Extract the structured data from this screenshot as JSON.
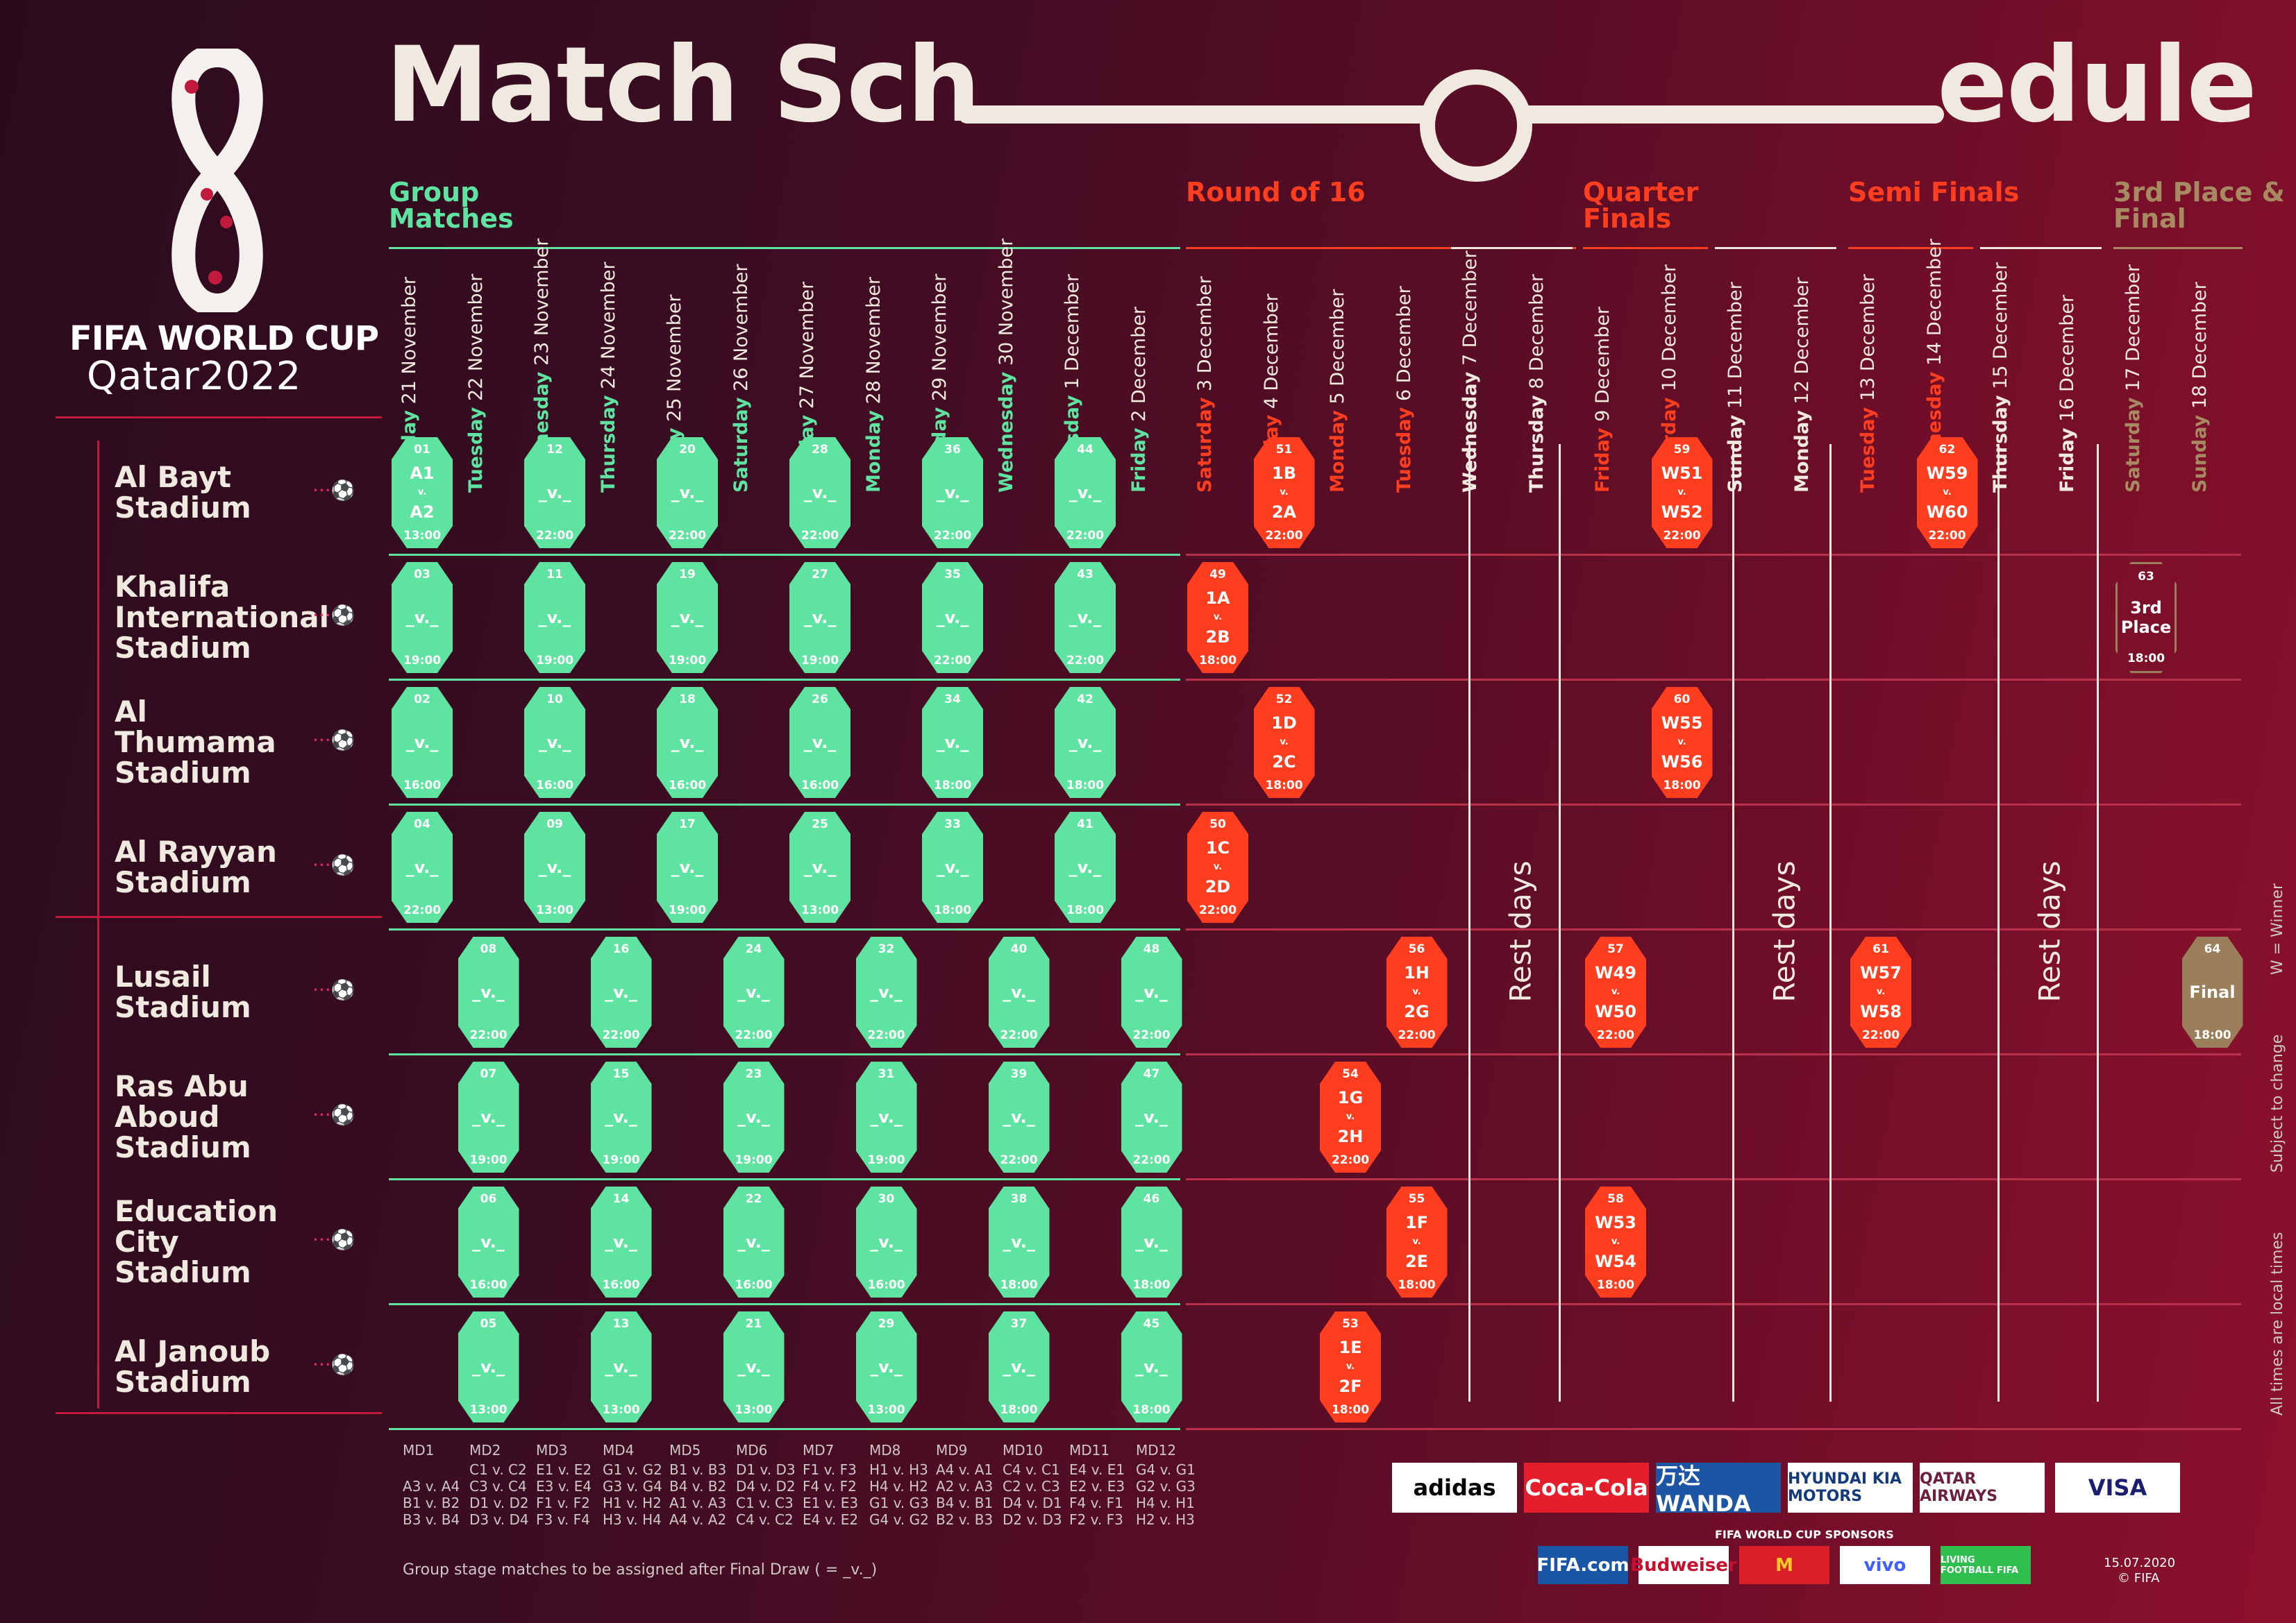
{
  "title": {
    "part1": "Match Sch",
    "part2": "edule"
  },
  "logo": {
    "line1": "FIFA WORLD CUP",
    "line2": "Qatar2022"
  },
  "phases": [
    {
      "label": "Group Matches",
      "color": "#5fe3a1"
    },
    {
      "label": "Round of 16",
      "color": "#ff3d1f"
    },
    {
      "label": "Quarter Finals",
      "color": "#ff3d1f"
    },
    {
      "label": "Semi Finals",
      "color": "#ff3d1f"
    },
    {
      "label": "3rd Place & Final",
      "color": "#a78a62"
    }
  ],
  "days": [
    {
      "wd": "Monday",
      "d": "21 November",
      "c": "#5fe3a1"
    },
    {
      "wd": "Tuesday",
      "d": "22 November",
      "c": "#5fe3a1"
    },
    {
      "wd": "Wednesday",
      "d": "23 November",
      "c": "#5fe3a1"
    },
    {
      "wd": "Thursday",
      "d": "24 November",
      "c": "#5fe3a1"
    },
    {
      "wd": "Friday",
      "d": "25 November",
      "c": "#5fe3a1"
    },
    {
      "wd": "Saturday",
      "d": "26 November",
      "c": "#5fe3a1"
    },
    {
      "wd": "Sunday",
      "d": "27 November",
      "c": "#5fe3a1"
    },
    {
      "wd": "Monday",
      "d": "28 November",
      "c": "#5fe3a1"
    },
    {
      "wd": "Tuesday",
      "d": "29 November",
      "c": "#5fe3a1"
    },
    {
      "wd": "Wednesday",
      "d": "30 November",
      "c": "#5fe3a1"
    },
    {
      "wd": "Thursday",
      "d": "1 December",
      "c": "#5fe3a1"
    },
    {
      "wd": "Friday",
      "d": "2 December",
      "c": "#5fe3a1"
    },
    {
      "wd": "Saturday",
      "d": "3 December",
      "c": "#ff3d1f"
    },
    {
      "wd": "Sunday",
      "d": "4 December",
      "c": "#ff3d1f"
    },
    {
      "wd": "Monday",
      "d": "5 December",
      "c": "#ff3d1f"
    },
    {
      "wd": "Tuesday",
      "d": "6 December",
      "c": "#ff3d1f"
    },
    {
      "wd": "Wednesday",
      "d": "7 December",
      "c": "#efe9df"
    },
    {
      "wd": "Thursday",
      "d": "8 December",
      "c": "#efe9df"
    },
    {
      "wd": "Friday",
      "d": "9 December",
      "c": "#ff3d1f"
    },
    {
      "wd": "Saturday",
      "d": "10 December",
      "c": "#ff3d1f"
    },
    {
      "wd": "Sunday",
      "d": "11 December",
      "c": "#efe9df"
    },
    {
      "wd": "Monday",
      "d": "12 December",
      "c": "#efe9df"
    },
    {
      "wd": "Tuesday",
      "d": "13 December",
      "c": "#ff3d1f"
    },
    {
      "wd": "Wednesday",
      "d": "14 December",
      "c": "#ff3d1f"
    },
    {
      "wd": "Thursday",
      "d": "15 December",
      "c": "#efe9df"
    },
    {
      "wd": "Friday",
      "d": "16 December",
      "c": "#efe9df"
    },
    {
      "wd": "Saturday",
      "d": "17 December",
      "c": "#a78a62"
    },
    {
      "wd": "Sunday",
      "d": "18 December",
      "c": "#a78a62"
    }
  ],
  "stadiums": [
    {
      "name": "Al Bayt Stadium",
      "lines": [
        "Al Bayt",
        "Stadium"
      ]
    },
    {
      "name": "Khalifa International Stadium",
      "lines": [
        "Khalifa",
        "International",
        "Stadium"
      ]
    },
    {
      "name": "Al Thumama Stadium",
      "lines": [
        "Al",
        "Thumama",
        "Stadium"
      ]
    },
    {
      "name": "Al Rayyan Stadium",
      "lines": [
        "Al Rayyan",
        "Stadium"
      ]
    },
    {
      "name": "Lusail Stadium",
      "lines": [
        "Lusail",
        "Stadium"
      ]
    },
    {
      "name": "Ras Abu Aboud Stadium",
      "lines": [
        "Ras Abu",
        "Aboud",
        "Stadium"
      ]
    },
    {
      "name": "Education City Stadium",
      "lines": [
        "Education",
        "City",
        "Stadium"
      ]
    },
    {
      "name": "Al Janoub Stadium",
      "lines": [
        "Al Janoub",
        "Stadium"
      ]
    }
  ],
  "matches": [
    {
      "n": "01",
      "row": 0,
      "day": 0,
      "t1": "A1",
      "t2": "A2",
      "time": "13:00",
      "k": "g"
    },
    {
      "n": "12",
      "row": 0,
      "day": 2,
      "t1": "_",
      "t2": "_",
      "time": "22:00",
      "k": "g"
    },
    {
      "n": "20",
      "row": 0,
      "day": 4,
      "t1": "_",
      "t2": "_",
      "time": "22:00",
      "k": "g"
    },
    {
      "n": "28",
      "row": 0,
      "day": 6,
      "t1": "_",
      "t2": "_",
      "time": "22:00",
      "k": "g"
    },
    {
      "n": "36",
      "row": 0,
      "day": 8,
      "t1": "_",
      "t2": "_",
      "time": "22:00",
      "k": "g"
    },
    {
      "n": "44",
      "row": 0,
      "day": 10,
      "t1": "_",
      "t2": "_",
      "time": "22:00",
      "k": "g"
    },
    {
      "n": "51",
      "row": 0,
      "day": 13,
      "t1": "1B",
      "t2": "2A",
      "time": "22:00",
      "k": "r"
    },
    {
      "n": "59",
      "row": 0,
      "day": 19,
      "t1": "W51",
      "t2": "W52",
      "time": "22:00",
      "k": "r"
    },
    {
      "n": "62",
      "row": 0,
      "day": 23,
      "t1": "W59",
      "t2": "W60",
      "time": "22:00",
      "k": "r"
    },
    {
      "n": "03",
      "row": 1,
      "day": 0,
      "t1": "_",
      "t2": "_",
      "time": "19:00",
      "k": "g"
    },
    {
      "n": "11",
      "row": 1,
      "day": 2,
      "t1": "_",
      "t2": "_",
      "time": "19:00",
      "k": "g"
    },
    {
      "n": "19",
      "row": 1,
      "day": 4,
      "t1": "_",
      "t2": "_",
      "time": "19:00",
      "k": "g"
    },
    {
      "n": "27",
      "row": 1,
      "day": 6,
      "t1": "_",
      "t2": "_",
      "time": "19:00",
      "k": "g"
    },
    {
      "n": "35",
      "row": 1,
      "day": 8,
      "t1": "_",
      "t2": "_",
      "time": "22:00",
      "k": "g"
    },
    {
      "n": "43",
      "row": 1,
      "day": 10,
      "t1": "_",
      "t2": "_",
      "time": "22:00",
      "k": "g"
    },
    {
      "n": "49",
      "row": 1,
      "day": 12,
      "t1": "1A",
      "t2": "2B",
      "time": "18:00",
      "k": "r"
    },
    {
      "n": "63",
      "row": 1,
      "day": 26,
      "t1": "3rd",
      "t2": "Place",
      "time": "18:00",
      "k": "t3"
    },
    {
      "n": "02",
      "row": 2,
      "day": 0,
      "t1": "_",
      "t2": "_",
      "time": "16:00",
      "k": "g"
    },
    {
      "n": "10",
      "row": 2,
      "day": 2,
      "t1": "_",
      "t2": "_",
      "time": "16:00",
      "k": "g"
    },
    {
      "n": "18",
      "row": 2,
      "day": 4,
      "t1": "_",
      "t2": "_",
      "time": "16:00",
      "k": "g"
    },
    {
      "n": "26",
      "row": 2,
      "day": 6,
      "t1": "_",
      "t2": "_",
      "time": "16:00",
      "k": "g"
    },
    {
      "n": "34",
      "row": 2,
      "day": 8,
      "t1": "_",
      "t2": "_",
      "time": "18:00",
      "k": "g"
    },
    {
      "n": "42",
      "row": 2,
      "day": 10,
      "t1": "_",
      "t2": "_",
      "time": "18:00",
      "k": "g"
    },
    {
      "n": "52",
      "row": 2,
      "day": 13,
      "t1": "1D",
      "t2": "2C",
      "time": "18:00",
      "k": "r"
    },
    {
      "n": "60",
      "row": 2,
      "day": 19,
      "t1": "W55",
      "t2": "W56",
      "time": "18:00",
      "k": "r"
    },
    {
      "n": "04",
      "row": 3,
      "day": 0,
      "t1": "_",
      "t2": "_",
      "time": "22:00",
      "k": "g"
    },
    {
      "n": "09",
      "row": 3,
      "day": 2,
      "t1": "_",
      "t2": "_",
      "time": "13:00",
      "k": "g"
    },
    {
      "n": "17",
      "row": 3,
      "day": 4,
      "t1": "_",
      "t2": "_",
      "time": "19:00",
      "k": "g"
    },
    {
      "n": "25",
      "row": 3,
      "day": 6,
      "t1": "_",
      "t2": "_",
      "time": "13:00",
      "k": "g"
    },
    {
      "n": "33",
      "row": 3,
      "day": 8,
      "t1": "_",
      "t2": "_",
      "time": "18:00",
      "k": "g"
    },
    {
      "n": "41",
      "row": 3,
      "day": 10,
      "t1": "_",
      "t2": "_",
      "time": "18:00",
      "k": "g"
    },
    {
      "n": "50",
      "row": 3,
      "day": 12,
      "t1": "1C",
      "t2": "2D",
      "time": "22:00",
      "k": "r"
    },
    {
      "n": "08",
      "row": 4,
      "day": 1,
      "t1": "_",
      "t2": "_",
      "time": "22:00",
      "k": "g"
    },
    {
      "n": "16",
      "row": 4,
      "day": 3,
      "t1": "_",
      "t2": "_",
      "time": "22:00",
      "k": "g"
    },
    {
      "n": "24",
      "row": 4,
      "day": 5,
      "t1": "_",
      "t2": "_",
      "time": "22:00",
      "k": "g"
    },
    {
      "n": "32",
      "row": 4,
      "day": 7,
      "t1": "_",
      "t2": "_",
      "time": "22:00",
      "k": "g"
    },
    {
      "n": "40",
      "row": 4,
      "day": 9,
      "t1": "_",
      "t2": "_",
      "time": "22:00",
      "k": "g"
    },
    {
      "n": "48",
      "row": 4,
      "day": 11,
      "t1": "_",
      "t2": "_",
      "time": "22:00",
      "k": "g"
    },
    {
      "n": "56",
      "row": 4,
      "day": 15,
      "t1": "1H",
      "t2": "2G",
      "time": "22:00",
      "k": "r"
    },
    {
      "n": "57",
      "row": 4,
      "day": 18,
      "t1": "W49",
      "t2": "W50",
      "time": "22:00",
      "k": "r"
    },
    {
      "n": "61",
      "row": 4,
      "day": 22,
      "t1": "W57",
      "t2": "W58",
      "time": "22:00",
      "k": "r"
    },
    {
      "n": "64",
      "row": 4,
      "day": 27,
      "t1": "Final",
      "t2": "",
      "time": "18:00",
      "k": "f"
    },
    {
      "n": "07",
      "row": 5,
      "day": 1,
      "t1": "_",
      "t2": "_",
      "time": "19:00",
      "k": "g"
    },
    {
      "n": "15",
      "row": 5,
      "day": 3,
      "t1": "_",
      "t2": "_",
      "time": "19:00",
      "k": "g"
    },
    {
      "n": "23",
      "row": 5,
      "day": 5,
      "t1": "_",
      "t2": "_",
      "time": "19:00",
      "k": "g"
    },
    {
      "n": "31",
      "row": 5,
      "day": 7,
      "t1": "_",
      "t2": "_",
      "time": "19:00",
      "k": "g"
    },
    {
      "n": "39",
      "row": 5,
      "day": 9,
      "t1": "_",
      "t2": "_",
      "time": "22:00",
      "k": "g"
    },
    {
      "n": "47",
      "row": 5,
      "day": 11,
      "t1": "_",
      "t2": "_",
      "time": "22:00",
      "k": "g"
    },
    {
      "n": "54",
      "row": 5,
      "day": 14,
      "t1": "1G",
      "t2": "2H",
      "time": "22:00",
      "k": "r"
    },
    {
      "n": "06",
      "row": 6,
      "day": 1,
      "t1": "_",
      "t2": "_",
      "time": "16:00",
      "k": "g"
    },
    {
      "n": "14",
      "row": 6,
      "day": 3,
      "t1": "_",
      "t2": "_",
      "time": "16:00",
      "k": "g"
    },
    {
      "n": "22",
      "row": 6,
      "day": 5,
      "t1": "_",
      "t2": "_",
      "time": "16:00",
      "k": "g"
    },
    {
      "n": "30",
      "row": 6,
      "day": 7,
      "t1": "_",
      "t2": "_",
      "time": "16:00",
      "k": "g"
    },
    {
      "n": "38",
      "row": 6,
      "day": 9,
      "t1": "_",
      "t2": "_",
      "time": "18:00",
      "k": "g"
    },
    {
      "n": "46",
      "row": 6,
      "day": 11,
      "t1": "_",
      "t2": "_",
      "time": "18:00",
      "k": "g"
    },
    {
      "n": "55",
      "row": 6,
      "day": 15,
      "t1": "1F",
      "t2": "2E",
      "time": "18:00",
      "k": "r"
    },
    {
      "n": "58",
      "row": 6,
      "day": 18,
      "t1": "W53",
      "t2": "W54",
      "time": "18:00",
      "k": "r"
    },
    {
      "n": "05",
      "row": 7,
      "day": 1,
      "t1": "_",
      "t2": "_",
      "time": "13:00",
      "k": "g"
    },
    {
      "n": "13",
      "row": 7,
      "day": 3,
      "t1": "_",
      "t2": "_",
      "time": "13:00",
      "k": "g"
    },
    {
      "n": "21",
      "row": 7,
      "day": 5,
      "t1": "_",
      "t2": "_",
      "time": "13:00",
      "k": "g"
    },
    {
      "n": "29",
      "row": 7,
      "day": 7,
      "t1": "_",
      "t2": "_",
      "time": "13:00",
      "k": "g"
    },
    {
      "n": "37",
      "row": 7,
      "day": 9,
      "t1": "_",
      "t2": "_",
      "time": "18:00",
      "k": "g"
    },
    {
      "n": "45",
      "row": 7,
      "day": 11,
      "t1": "_",
      "t2": "_",
      "time": "18:00",
      "k": "g"
    },
    {
      "n": "53",
      "row": 7,
      "day": 14,
      "t1": "1E",
      "t2": "2F",
      "time": "18:00",
      "k": "r"
    }
  ],
  "rest_label": "Rest days",
  "md": [
    {
      "h": "MD1",
      "r": [
        "",
        "A3 v. A4",
        "B1 v. B2",
        "B3 v. B4"
      ]
    },
    {
      "h": "MD2",
      "r": [
        "C1 v. C2",
        "C3 v. C4",
        "D1 v. D2",
        "D3 v. D4"
      ]
    },
    {
      "h": "MD3",
      "r": [
        "E1 v. E2",
        "E3 v. E4",
        "F1 v. F2",
        "F3 v. F4"
      ]
    },
    {
      "h": "MD4",
      "r": [
        "G1 v. G2",
        "G3 v. G4",
        "H1 v. H2",
        "H3 v. H4"
      ]
    },
    {
      "h": "MD5",
      "r": [
        "B1 v. B3",
        "B4 v. B2",
        "A1 v. A3",
        "A4 v. A2"
      ]
    },
    {
      "h": "MD6",
      "r": [
        "D1 v. D3",
        "D4 v. D2",
        "C1 v. C3",
        "C4 v. C2"
      ]
    },
    {
      "h": "MD7",
      "r": [
        "F1 v. F3",
        "F4 v. F2",
        "E1 v. E3",
        "E4 v. E2"
      ]
    },
    {
      "h": "MD8",
      "r": [
        "H1 v. H3",
        "H4 v. H2",
        "G1 v. G3",
        "G4 v. G2"
      ]
    },
    {
      "h": "MD9",
      "r": [
        "A4 v. A1",
        "A2 v. A3",
        "B4 v. B1",
        "B2 v. B3"
      ]
    },
    {
      "h": "MD10",
      "r": [
        "C4 v. C1",
        "C2 v. C3",
        "D4 v. D1",
        "D2 v. D3"
      ]
    },
    {
      "h": "MD11",
      "r": [
        "E4 v. E1",
        "E2 v. E3",
        "F4 v. F1",
        "F2 v. F3"
      ]
    },
    {
      "h": "MD12",
      "r": [
        "G4 v. G1",
        "G2 v. G3",
        "H4 v. H1",
        "H2 v. H3"
      ]
    }
  ],
  "note": "Group stage matches to be assigned after Final Draw ( = _v._)",
  "side_notes": [
    "W = Winner",
    "Subject to change",
    "All times are local times"
  ],
  "sponsors_label": "FIFA WORLD CUP SPONSORS",
  "sponsors": [
    "adidas",
    "Coca-Cola",
    "万达 WANDA",
    "HYUNDAI KIA MOTORS",
    "QATAR AIRWAYS",
    "VISA"
  ],
  "sponsors2": [
    "FIFA.com",
    "Budweiser",
    "M",
    "vivo",
    "LIVING FOOTBALL FIFA"
  ],
  "date": "15.07.2020",
  "copyright": "© FIFA"
}
